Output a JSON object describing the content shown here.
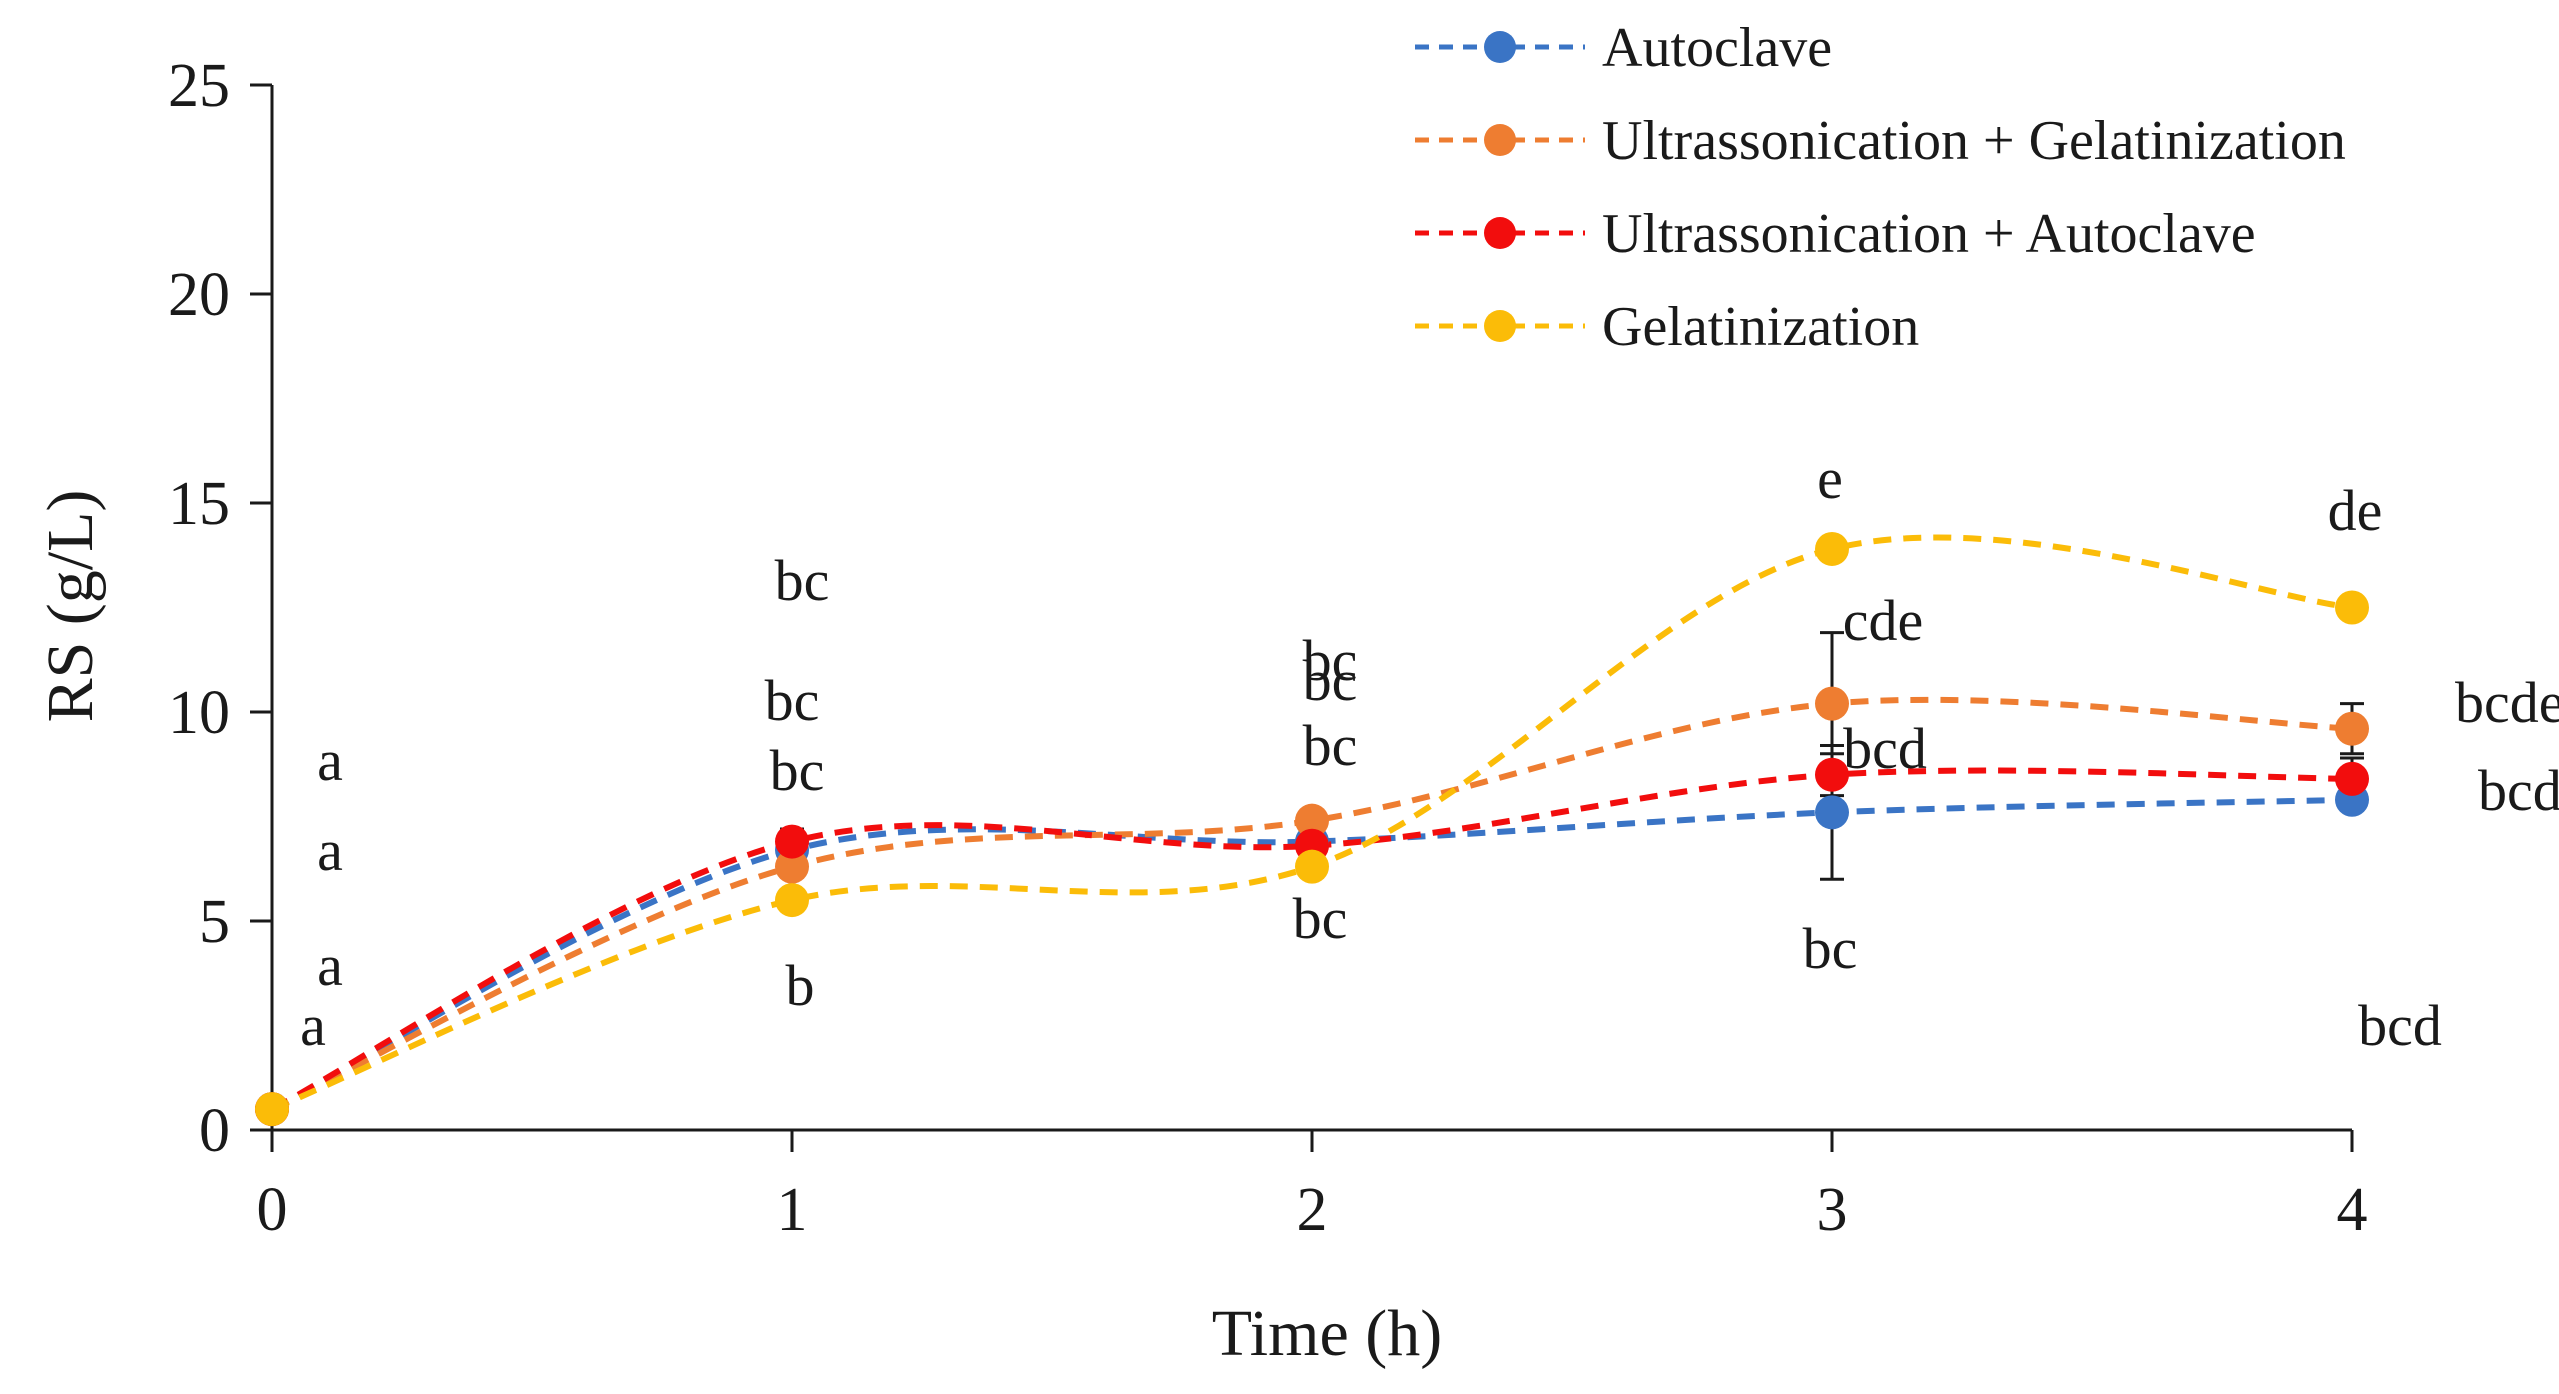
{
  "chart_data": {
    "type": "line",
    "title": "",
    "xlabel": "Time (h)",
    "ylabel": "RS (g/L)",
    "x": [
      0,
      1,
      2,
      3,
      4
    ],
    "xticks": [
      "0",
      "1",
      "2",
      "3",
      "4"
    ],
    "yticks": [
      "0",
      "5",
      "10",
      "15",
      "20",
      "25"
    ],
    "xlim": [
      0,
      4
    ],
    "ylim": [
      0,
      25
    ],
    "grid": false,
    "legend_position": "top-right",
    "series": [
      {
        "name": "Autoclave",
        "color": "#3a74c5",
        "values": [
          0.5,
          6.7,
          6.9,
          7.6,
          7.9
        ],
        "errors": [
          0,
          0,
          0,
          1.6,
          0
        ],
        "letters": [
          "a",
          "bc",
          "bc",
          "bc",
          "bcd"
        ]
      },
      {
        "name": "Ultrassonication + Gelatinization",
        "color": "#ee7d31",
        "values": [
          0.5,
          6.3,
          7.4,
          10.2,
          9.6
        ],
        "errors": [
          0,
          0,
          0,
          1.7,
          0.6
        ],
        "letters": [
          "a",
          "bc",
          "bc",
          "cde",
          "bcde"
        ]
      },
      {
        "name": "Ultrassonication + Autoclave",
        "color": "#f20d0d",
        "values": [
          0.5,
          6.9,
          6.8,
          8.5,
          8.4
        ],
        "errors": [
          0,
          0.3,
          0,
          0.5,
          0.5
        ],
        "letters": [
          "a",
          "bc",
          "bc",
          "bcd",
          "bcd"
        ]
      },
      {
        "name": "Gelatinization",
        "color": "#fbbc08",
        "values": [
          0.5,
          5.5,
          6.3,
          13.9,
          12.5
        ],
        "errors": [
          0,
          0,
          0,
          0,
          0
        ],
        "letters": [
          "a",
          "b",
          "bc",
          "e",
          "de"
        ]
      }
    ]
  }
}
